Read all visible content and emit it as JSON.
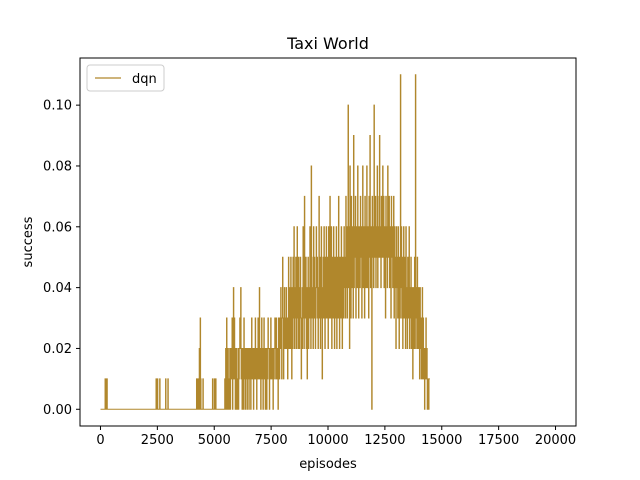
{
  "chart_data": {
    "type": "line",
    "title": "Taxi World",
    "xlabel": "episodes",
    "ylabel": "success",
    "xlim": [
      -900,
      20900
    ],
    "ylim": [
      -0.0055,
      0.1155
    ],
    "xticks": [
      0,
      2500,
      5000,
      7500,
      10000,
      12500,
      15000,
      17500,
      20000
    ],
    "xtick_labels": [
      "0",
      "2500",
      "5000",
      "7500",
      "10000",
      "12500",
      "15000",
      "17500",
      "20000"
    ],
    "yticks": [
      0.0,
      0.02,
      0.04,
      0.06,
      0.08,
      0.1
    ],
    "ytick_labels": [
      "0.00",
      "0.02",
      "0.04",
      "0.06",
      "0.08",
      "0.10"
    ],
    "grid": false,
    "legend": {
      "position": "upper left",
      "entries": [
        "dqn"
      ]
    },
    "series": [
      {
        "name": "dqn",
        "color": "#b0872c",
        "step": 20,
        "x_start": 0,
        "values": [
          0,
          0,
          0,
          0,
          0,
          0,
          0,
          0,
          0,
          0,
          0.01,
          0,
          0.01,
          0,
          0.01,
          0,
          0,
          0,
          0,
          0,
          0,
          0,
          0,
          0,
          0,
          0,
          0,
          0,
          0,
          0,
          0,
          0,
          0,
          0,
          0,
          0,
          0,
          0,
          0,
          0,
          0,
          0,
          0,
          0,
          0,
          0,
          0,
          0,
          0,
          0,
          0,
          0,
          0,
          0,
          0,
          0,
          0,
          0,
          0,
          0,
          0,
          0,
          0,
          0,
          0,
          0,
          0,
          0,
          0,
          0,
          0,
          0,
          0,
          0,
          0,
          0,
          0,
          0,
          0,
          0,
          0,
          0,
          0,
          0,
          0,
          0,
          0,
          0,
          0,
          0,
          0,
          0,
          0,
          0,
          0,
          0,
          0,
          0,
          0,
          0,
          0,
          0,
          0,
          0,
          0,
          0,
          0,
          0,
          0,
          0,
          0,
          0,
          0,
          0,
          0,
          0,
          0,
          0,
          0,
          0,
          0,
          0,
          0.01,
          0,
          0,
          0.01,
          0,
          0,
          0,
          0,
          0.01,
          0,
          0,
          0,
          0,
          0,
          0,
          0,
          0,
          0,
          0,
          0,
          0,
          0.01,
          0,
          0,
          0,
          0,
          0.01,
          0,
          0,
          0,
          0,
          0,
          0,
          0,
          0,
          0,
          0,
          0,
          0,
          0,
          0,
          0,
          0,
          0,
          0,
          0,
          0,
          0,
          0,
          0,
          0,
          0,
          0,
          0,
          0,
          0,
          0,
          0,
          0,
          0,
          0,
          0,
          0,
          0,
          0,
          0,
          0,
          0,
          0,
          0,
          0,
          0,
          0,
          0,
          0,
          0,
          0,
          0,
          0,
          0,
          0,
          0,
          0,
          0,
          0,
          0,
          0,
          0,
          0,
          0.01,
          0,
          0,
          0.01,
          0,
          0.01,
          0.02,
          0,
          0.03,
          0.01,
          0,
          0,
          0,
          0,
          0.01,
          0,
          0,
          0,
          0,
          0,
          0,
          0,
          0,
          0,
          0,
          0,
          0,
          0,
          0,
          0,
          0,
          0,
          0,
          0,
          0,
          0.01,
          0,
          0,
          0,
          0.01,
          0,
          0,
          0.01,
          0,
          0,
          0,
          0,
          0,
          0,
          0,
          0,
          0,
          0,
          0,
          0,
          0,
          0,
          0,
          0,
          0,
          0,
          0,
          0.01,
          0,
          0.02,
          0,
          0.03,
          0.01,
          0,
          0.02,
          0,
          0.01,
          0,
          0.02,
          0,
          0.01,
          0.02,
          0.01,
          0.03,
          0,
          0.02,
          0.04,
          0.01,
          0.03,
          0.02,
          0,
          0.01,
          0.02,
          0,
          0.01,
          0,
          0.02,
          0,
          0.01,
          0.02,
          0.03,
          0.02,
          0.04,
          0.01,
          0.02,
          0,
          0.01,
          0.02,
          0,
          0.03,
          0.01,
          0.02,
          0,
          0.01,
          0.02,
          0.01,
          0,
          0.02,
          0.01,
          0.02,
          0,
          0.01,
          0.02,
          0.01,
          0,
          0.02,
          0.03,
          0.01,
          0.02,
          0.01,
          0,
          0.02,
          0.01,
          0.02,
          0.03,
          0.01,
          0.02,
          0,
          0.02,
          0.01,
          0.03,
          0.01,
          0.02,
          0.04,
          0.01,
          0.02,
          0,
          0.01,
          0.03,
          0.02,
          0.01,
          0,
          0.02,
          0.03,
          0.01,
          0.02,
          0,
          0.01,
          0.02,
          0,
          0.01,
          0.02,
          0.03,
          0.02,
          0.01,
          0,
          0.02,
          0.01,
          0.03,
          0.02,
          0.01,
          0.02,
          0.01,
          0,
          0.02,
          0.01,
          0.02,
          0.03,
          0.02,
          0.01,
          0.03,
          0.02,
          0.01,
          0.02,
          0,
          0.03,
          0.02,
          0.01,
          0.03,
          0.02,
          0.04,
          0.02,
          0.01,
          0.03,
          0.05,
          0.03,
          0.01,
          0.02,
          0.04,
          0.03,
          0.02,
          0.03,
          0.04,
          0.02,
          0.03,
          0.01,
          0.03,
          0.05,
          0.02,
          0.04,
          0.03,
          0.02,
          0.05,
          0.03,
          0.01,
          0.04,
          0.02,
          0.05,
          0.03,
          0.06,
          0.02,
          0.04,
          0.03,
          0.05,
          0.02,
          0.04,
          0.06,
          0.03,
          0.02,
          0.05,
          0.04,
          0.02,
          0.03,
          0.05,
          0.04,
          0.01,
          0.03,
          0.02,
          0.04,
          0.06,
          0.03,
          0.02,
          0.07,
          0.04,
          0.03,
          0.05,
          0.02,
          0.04,
          0.01,
          0.03,
          0.05,
          0.02,
          0.04,
          0.03,
          0.06,
          0.04,
          0.02,
          0.08,
          0.05,
          0.03,
          0.04,
          0.02,
          0.06,
          0.03,
          0.05,
          0.04,
          0.02,
          0.03,
          0.06,
          0.04,
          0.05,
          0.03,
          0.02,
          0.04,
          0.07,
          0.03,
          0.05,
          0.02,
          0.04,
          0.06,
          0.03,
          0.01,
          0.04,
          0.05,
          0.03,
          0.06,
          0.04,
          0.02,
          0.05,
          0.03,
          0.06,
          0.04,
          0.03,
          0.05,
          0.02,
          0.06,
          0.04,
          0.03,
          0.07,
          0.05,
          0.03,
          0.06,
          0.02,
          0.04,
          0.05,
          0.03,
          0.06,
          0.04,
          0.02,
          0.05,
          0.03,
          0.04,
          0.06,
          0.02,
          0.04,
          0.05,
          0.03,
          0.07,
          0.04,
          0.02,
          0.05,
          0.03,
          0.04,
          0.06,
          0.03,
          0.02,
          0.05,
          0.04,
          0.03,
          0.06,
          0.04,
          0.05,
          0.03,
          0.07,
          0.04,
          0.06,
          0.03,
          0.05,
          0.1,
          0.04,
          0.06,
          0.02,
          0.08,
          0.05,
          0.03,
          0.07,
          0.04,
          0.06,
          0.05,
          0.03,
          0.09,
          0.04,
          0.06,
          0.05,
          0.07,
          0.03,
          0.05,
          0.06,
          0.04,
          0.08,
          0.05,
          0.03,
          0.06,
          0.05,
          0.04,
          0.07,
          0.05,
          0.06,
          0.03,
          0.05,
          0.08,
          0.04,
          0.06,
          0.05,
          0.03,
          0.07,
          0.06,
          0.04,
          0.05,
          0.08,
          0.04,
          0.06,
          0.05,
          0.03,
          0.07,
          0.05,
          0.09,
          0.04,
          0.06,
          0.05,
          0,
          0.07,
          0.05,
          0.06,
          0.04,
          0.1,
          0.06,
          0.05,
          0.07,
          0.04,
          0.06,
          0.05,
          0.08,
          0.04,
          0.06,
          0.05,
          0.07,
          0.09,
          0.05,
          0.06,
          0.04,
          0.07,
          0.05,
          0.06,
          0.08,
          0.05,
          0.07,
          0.04,
          0.06,
          0.05,
          0.03,
          0.07,
          0.05,
          0.06,
          0.04,
          0.08,
          0.06,
          0.05,
          0.07,
          0.04,
          0.06,
          0.05,
          0.03,
          0.07,
          0.05,
          0.06,
          0.04,
          0.05,
          0.07,
          0.03,
          0.06,
          0.05,
          0.04,
          0.02,
          0.06,
          0.04,
          0.05,
          0.03,
          0.06,
          0.04,
          0.02,
          0.05,
          0.03,
          0.11,
          0.04,
          0.06,
          0.03,
          0.05,
          0.02,
          0.04,
          0.06,
          0.03,
          0.05,
          0.04,
          0.02,
          0.06,
          0.03,
          0.04,
          0.02,
          0.05,
          0.03,
          0.04,
          0.06,
          0.02,
          0.04,
          0.03,
          0.05,
          0.02,
          0.04,
          0.03,
          0.01,
          0.04,
          0.02,
          0.03,
          0.05,
          0.02,
          0.11,
          0.03,
          0.04,
          0.02,
          0.05,
          0.03,
          0.02,
          0.04,
          0.03,
          0.01,
          0.04,
          0.02,
          0.03,
          0.01,
          0.02,
          0.04,
          0.01,
          0.03,
          0.02,
          0.01,
          0,
          0.02,
          0.01,
          0.03,
          0.01,
          0.02,
          0,
          0.01,
          0.01,
          0,
          0.01,
          0.01,
          0.01
        ]
      }
    ]
  }
}
